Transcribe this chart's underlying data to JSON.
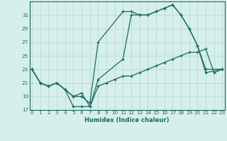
{
  "title": "",
  "xlabel": "Humidex (Indice chaleur)",
  "background_color": "#d6eeec",
  "grid_color": "#b8dcd8",
  "line_color": "#1a6b5a",
  "spine_color": "#1a6b5a",
  "series": [
    {
      "x": [
        0,
        1,
        2,
        3,
        4,
        5,
        6,
        7,
        8,
        11,
        12,
        13,
        14,
        15,
        16,
        17,
        18,
        19,
        20,
        21,
        23
      ],
      "y": [
        23,
        21,
        20.5,
        21,
        20,
        17.5,
        17.5,
        17.5,
        21.5,
        24.5,
        31,
        31,
        31,
        31.5,
        32,
        32.5,
        31,
        29,
        26.5,
        23,
        23
      ]
    },
    {
      "x": [
        0,
        1,
        2,
        3,
        4,
        5,
        6,
        7,
        8,
        9,
        10,
        11,
        12,
        13,
        14,
        15,
        16,
        17,
        18,
        19,
        20,
        21,
        22,
        23
      ],
      "y": [
        23,
        21,
        20.5,
        21,
        20,
        19,
        19.5,
        17.5,
        20.5,
        21,
        21.5,
        22,
        22,
        22.5,
        23,
        23.5,
        24,
        24.5,
        25,
        25.5,
        25.5,
        26,
        22.5,
        23
      ]
    },
    {
      "x": [
        0,
        1,
        2,
        3,
        5,
        6,
        7,
        8,
        11,
        12,
        13,
        14,
        15,
        16,
        17,
        18,
        19,
        20,
        21,
        23
      ],
      "y": [
        23,
        21,
        20.5,
        21,
        19,
        19,
        18,
        27,
        31.5,
        31.5,
        31,
        31,
        31.5,
        32,
        32.5,
        31,
        29,
        26.5,
        22.5,
        23
      ]
    }
  ],
  "xlim": [
    -0.3,
    23.3
  ],
  "ylim": [
    17,
    33
  ],
  "yticks": [
    17,
    19,
    21,
    23,
    25,
    27,
    29,
    31
  ],
  "xticks": [
    0,
    1,
    2,
    3,
    4,
    5,
    6,
    7,
    8,
    9,
    10,
    11,
    12,
    13,
    14,
    15,
    16,
    17,
    18,
    19,
    20,
    21,
    22,
    23
  ],
  "tick_fontsize": 5.2,
  "xlabel_fontsize": 6.0,
  "figsize": [
    3.2,
    2.0
  ],
  "dpi": 100
}
